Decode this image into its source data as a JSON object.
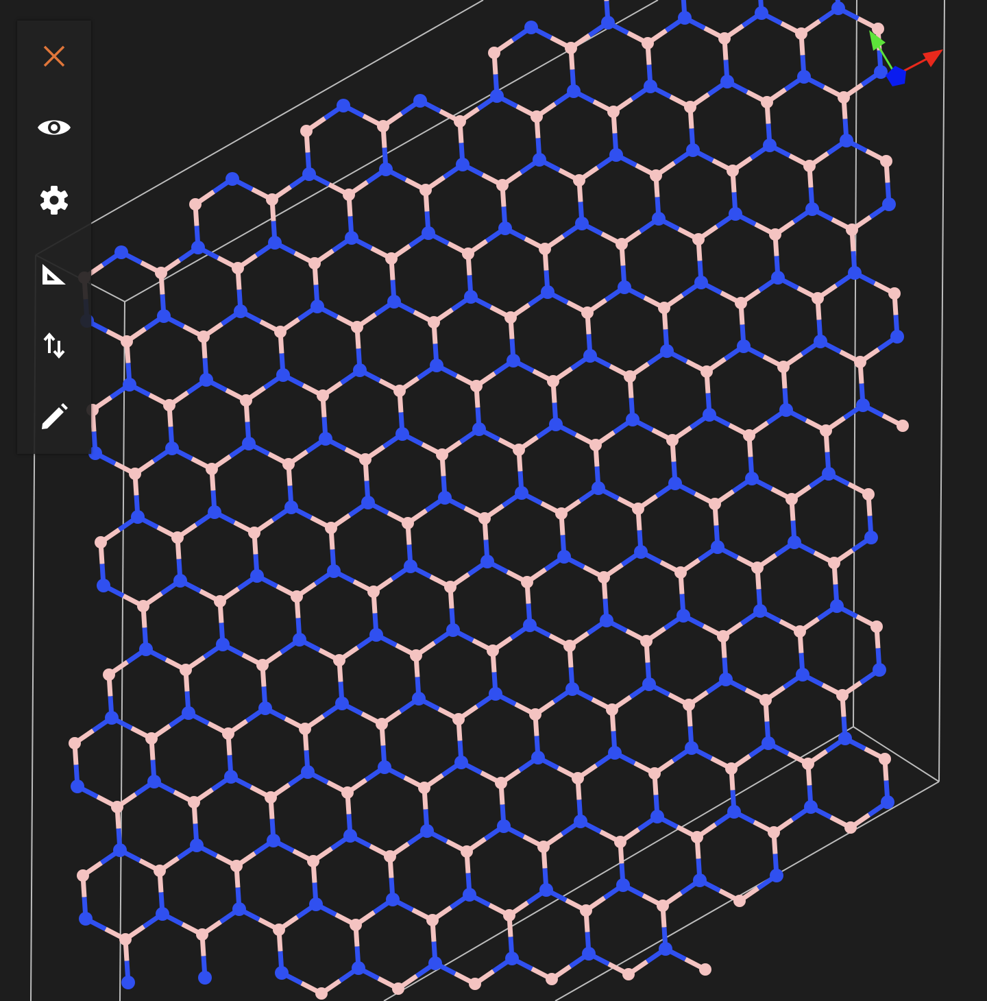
{
  "viewer": {
    "background_color": "#1d1d1d",
    "cell_box_color": "#bdbdbd",
    "atoms": [
      {
        "element": "B",
        "color": "#f4c3c1"
      },
      {
        "element": "N",
        "color": "#3050f0"
      }
    ]
  },
  "toolbar": {
    "items": [
      {
        "icon": "close-icon",
        "color": "#e0763a"
      },
      {
        "icon": "eye-icon",
        "color": "#ffffff"
      },
      {
        "icon": "gear-icon",
        "color": "#ffffff"
      },
      {
        "icon": "ruler-triangle-icon",
        "color": "#ffffff"
      },
      {
        "icon": "swap-vertical-icon",
        "color": "#ffffff"
      },
      {
        "icon": "pencil-icon",
        "color": "#ffffff"
      }
    ]
  },
  "axes_gizmo": {
    "x_color": "#e8291c",
    "y_color": "#5de33a",
    "z_color": "#0a1cf0"
  }
}
